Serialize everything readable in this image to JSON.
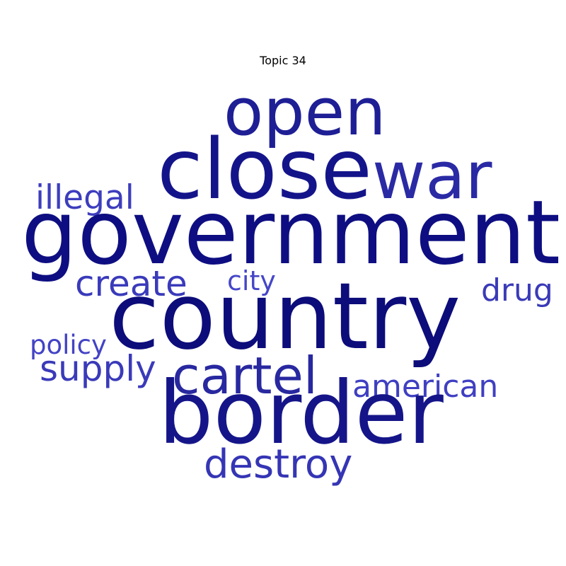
{
  "title": "Topic 34",
  "words": [
    {
      "text": "government",
      "color": "#0e0e82"
    },
    {
      "text": "country",
      "color": "#0c0c7a"
    },
    {
      "text": "border",
      "color": "#151589"
    },
    {
      "text": "close",
      "color": "#14148a"
    },
    {
      "text": "open",
      "color": "#1e1e95"
    },
    {
      "text": "war",
      "color": "#2a2aa5"
    },
    {
      "text": "cartel",
      "color": "#2828a0"
    },
    {
      "text": "destroy",
      "color": "#3535b5"
    },
    {
      "text": "create",
      "color": "#3a3abb"
    },
    {
      "text": "illegal",
      "color": "#3d3dbe"
    },
    {
      "text": "drug",
      "color": "#3a3ab8"
    },
    {
      "text": "supply",
      "color": "#3a3aba"
    },
    {
      "text": "american",
      "color": "#3f3fc2"
    },
    {
      "text": "city",
      "color": "#4646c8"
    },
    {
      "text": "policy",
      "color": "#4343c6"
    }
  ]
}
